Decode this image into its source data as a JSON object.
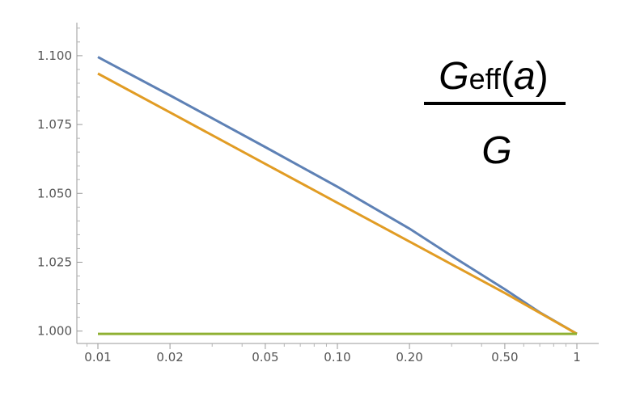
{
  "chart_data": {
    "type": "line",
    "title": "",
    "xlabel": "",
    "ylabel": "",
    "x_scale": "log",
    "xlim": [
      0.01,
      1
    ],
    "ylim": [
      0.9955,
      1.112
    ],
    "x_ticks": [
      0.01,
      0.02,
      0.05,
      0.1,
      0.2,
      0.5,
      1
    ],
    "x_tick_labels": [
      "0.01",
      "0.02",
      "0.05",
      "0.10",
      "0.20",
      "0.50",
      "1"
    ],
    "y_ticks": [
      1.0,
      1.025,
      1.05,
      1.075,
      1.1
    ],
    "y_tick_labels": [
      "1.000",
      "1.025",
      "1.050",
      "1.075",
      "1.100"
    ],
    "grid": false,
    "annotation": {
      "numerator_main": "G",
      "numerator_sub": "eff",
      "numerator_open": "(",
      "numerator_arg": "a",
      "numerator_close": ")",
      "denominator": "G"
    },
    "series": [
      {
        "color": "#5E81B5",
        "x": [
          0.01,
          0.02,
          0.05,
          0.1,
          0.2,
          0.3,
          0.5,
          0.7,
          1.0
        ],
        "y": [
          1.0995,
          1.0856,
          1.0668,
          1.0524,
          1.0372,
          1.0273,
          1.0152,
          1.0068,
          0.999
        ]
      },
      {
        "color": "#E19C24",
        "x": [
          0.01,
          0.02,
          0.05,
          0.1,
          0.2,
          0.5,
          1.0
        ],
        "y": [
          1.0935,
          1.0794,
          1.0607,
          1.0466,
          1.0325,
          1.0138,
          0.999
        ]
      },
      {
        "color": "#8FB032",
        "x": [
          0.01,
          1.0
        ],
        "y": [
          0.999,
          0.999
        ]
      }
    ]
  }
}
